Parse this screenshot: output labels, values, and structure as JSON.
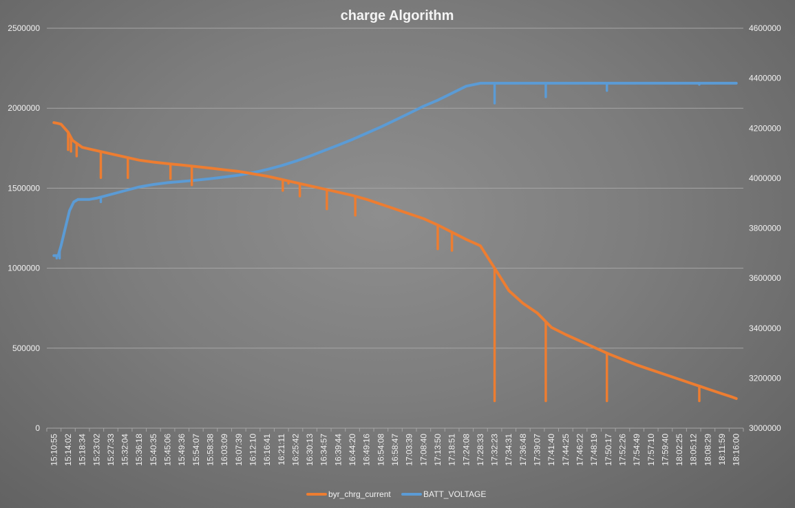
{
  "chart_data": {
    "type": "line",
    "title": "charge Algorithm",
    "xlabel": "",
    "ylabel": "",
    "y2label": "",
    "grid": true,
    "legend_position": "bottom",
    "ylim": [
      0,
      2500000
    ],
    "y2lim": [
      3000000,
      4600000
    ],
    "yticks": [
      0,
      500000,
      1000000,
      1500000,
      2000000,
      2500000
    ],
    "y2ticks": [
      3000000,
      3200000,
      3400000,
      3600000,
      3800000,
      4000000,
      4200000,
      4400000,
      4600000
    ],
    "x_tick_labels": [
      "15:10:55",
      "15:14:02",
      "15:18:34",
      "15:23:02",
      "15:27:33",
      "15:32:04",
      "15:36:18",
      "15:40:35",
      "15:45:06",
      "15:49:36",
      "15:54:07",
      "15:58:38",
      "16:03:09",
      "16:07:39",
      "16:12:10",
      "16:16:41",
      "16:21:11",
      "16:25:42",
      "16:30:13",
      "16:34:57",
      "16:39:44",
      "16:44:20",
      "16:49:16",
      "16:54:08",
      "16:58:47",
      "17:03:39",
      "17:08:40",
      "17:13:50",
      "17:18:51",
      "17:24:08",
      "17:28:33",
      "17:32:23",
      "17:34:31",
      "17:36:48",
      "17:39:07",
      "17:41:40",
      "17:44:25",
      "17:46:22",
      "17:48:19",
      "17:50:17",
      "17:52:26",
      "17:54:49",
      "17:57:10",
      "17:59:40",
      "18:02:25",
      "18:05:12",
      "18:08:29",
      "18:11:59",
      "18:16:00"
    ],
    "series": [
      {
        "name": "byr_chrg_current",
        "axis": "primary",
        "color": "#ed7d31",
        "points": [
          [
            0,
            1910000
          ],
          [
            0.3,
            1905000
          ],
          [
            0.5,
            1900000
          ],
          [
            0.7,
            1880000
          ],
          [
            1.0,
            1850000
          ],
          [
            1.3,
            1800000
          ],
          [
            1.6,
            1780000
          ],
          [
            2,
            1755000
          ],
          [
            3,
            1735000
          ],
          [
            4,
            1715000
          ],
          [
            5,
            1695000
          ],
          [
            6,
            1675000
          ],
          [
            7,
            1663000
          ],
          [
            8,
            1653000
          ],
          [
            9,
            1645000
          ],
          [
            10,
            1635000
          ],
          [
            11,
            1625000
          ],
          [
            12,
            1615000
          ],
          [
            13,
            1605000
          ],
          [
            14,
            1590000
          ],
          [
            15,
            1575000
          ],
          [
            16,
            1555000
          ],
          [
            17,
            1535000
          ],
          [
            18,
            1515000
          ],
          [
            19,
            1495000
          ],
          [
            20,
            1475000
          ],
          [
            21,
            1455000
          ],
          [
            22,
            1430000
          ],
          [
            23,
            1400000
          ],
          [
            24,
            1370000
          ],
          [
            25,
            1340000
          ],
          [
            26,
            1310000
          ],
          [
            27,
            1270000
          ],
          [
            28,
            1225000
          ],
          [
            29,
            1180000
          ],
          [
            30,
            1140000
          ],
          [
            31,
            1000000
          ],
          [
            32,
            860000
          ],
          [
            33,
            780000
          ],
          [
            34,
            720000
          ],
          [
            35,
            630000
          ],
          [
            36,
            585000
          ],
          [
            37,
            545000
          ],
          [
            38,
            505000
          ],
          [
            39,
            465000
          ],
          [
            40,
            430000
          ],
          [
            41,
            395000
          ],
          [
            42,
            365000
          ],
          [
            43,
            335000
          ],
          [
            44,
            305000
          ],
          [
            45,
            275000
          ],
          [
            46,
            245000
          ],
          [
            47,
            215000
          ],
          [
            47.7,
            195000
          ],
          [
            48,
            185000
          ]
        ],
        "dips": [
          [
            1.0,
            1740000
          ],
          [
            1.2,
            1730000
          ],
          [
            1.6,
            1700000
          ],
          [
            3.3,
            1565000
          ],
          [
            5.2,
            1565000
          ],
          [
            8.2,
            1560000
          ],
          [
            9.7,
            1520000
          ],
          [
            16.1,
            1485000
          ],
          [
            16.5,
            1530000
          ],
          [
            17.3,
            1450000
          ],
          [
            19.2,
            1370000
          ],
          [
            21.2,
            1330000
          ],
          [
            27.0,
            1120000
          ],
          [
            28.0,
            1110000
          ],
          [
            31.0,
            170000
          ],
          [
            34.6,
            170000
          ],
          [
            38.9,
            170000
          ],
          [
            45.4,
            170000
          ]
        ]
      },
      {
        "name": "BATT_VOLTAGE",
        "axis": "secondary",
        "color": "#5b9bd5",
        "points": [
          [
            0,
            3690000
          ],
          [
            0.3,
            3690000
          ],
          [
            0.5,
            3730000
          ],
          [
            0.8,
            3800000
          ],
          [
            1.1,
            3870000
          ],
          [
            1.4,
            3905000
          ],
          [
            1.7,
            3915000
          ],
          [
            2,
            3915000
          ],
          [
            2.5,
            3915000
          ],
          [
            3,
            3920000
          ],
          [
            4,
            3935000
          ],
          [
            5,
            3950000
          ],
          [
            6,
            3965000
          ],
          [
            7,
            3975000
          ],
          [
            8,
            3982000
          ],
          [
            9,
            3987000
          ],
          [
            10,
            3992000
          ],
          [
            11,
            3998000
          ],
          [
            12,
            4005000
          ],
          [
            13,
            4012000
          ],
          [
            14,
            4022000
          ],
          [
            15,
            4035000
          ],
          [
            16,
            4050000
          ],
          [
            17,
            4068000
          ],
          [
            18,
            4088000
          ],
          [
            19,
            4110000
          ],
          [
            20,
            4132000
          ],
          [
            21,
            4155000
          ],
          [
            22,
            4180000
          ],
          [
            23,
            4205000
          ],
          [
            24,
            4232000
          ],
          [
            25,
            4260000
          ],
          [
            26,
            4288000
          ],
          [
            27,
            4312000
          ],
          [
            28,
            4340000
          ],
          [
            29,
            4368000
          ],
          [
            30,
            4380000
          ],
          [
            31,
            4380000
          ],
          [
            35,
            4380000
          ],
          [
            40,
            4380000
          ],
          [
            45,
            4380000
          ],
          [
            48,
            4380000
          ]
        ],
        "dips": [
          [
            0.2,
            3680000
          ],
          [
            0.4,
            3680000
          ],
          [
            3.3,
            3905000
          ],
          [
            31.0,
            4300000
          ],
          [
            34.6,
            4325000
          ],
          [
            38.9,
            4350000
          ],
          [
            45.4,
            4375000
          ]
        ]
      }
    ]
  }
}
